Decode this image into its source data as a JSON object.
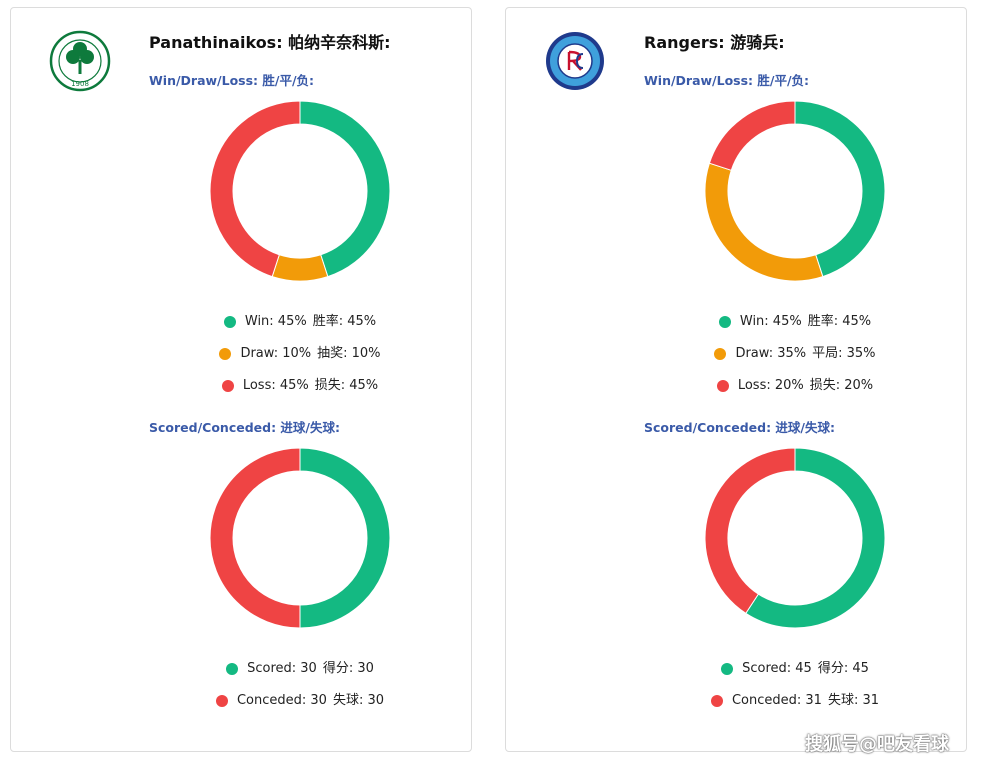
{
  "colors": {
    "win": "#14b982",
    "draw": "#f29b09",
    "loss": "#ef4444",
    "scored": "#14b982",
    "conceded": "#ef4444",
    "section": "#3a5aa8"
  },
  "teams": [
    {
      "title": "Panathinaikos: 帕纳辛奈科斯:",
      "logo_icon": "panathinaikos-clover-crest",
      "logo_year": "1908",
      "wdl_title": "Win/Draw/Loss: 胜/平/负:",
      "goals_title": "Scored/Conceded: 进球/失球:",
      "legend_wdl": [
        {
          "label": "Win: 45%",
          "label_cn": "胜率: 45%"
        },
        {
          "label": "Draw: 10%",
          "label_cn": "抽奖: 10%"
        },
        {
          "label": "Loss: 45%",
          "label_cn": "损失: 45%"
        }
      ],
      "legend_goals": [
        {
          "label": "Scored: 30",
          "label_cn": "得分: 30"
        },
        {
          "label": "Conceded: 30",
          "label_cn": "失球: 30"
        }
      ]
    },
    {
      "title": "Rangers: 游骑兵:",
      "logo_icon": "rangers-crest",
      "wdl_title": "Win/Draw/Loss: 胜/平/负:",
      "goals_title": "Scored/Conceded: 进球/失球:",
      "legend_wdl": [
        {
          "label": "Win: 45%",
          "label_cn": "胜率: 45%"
        },
        {
          "label": "Draw: 35%",
          "label_cn": "平局: 35%"
        },
        {
          "label": "Loss: 20%",
          "label_cn": "损失: 20%"
        }
      ],
      "legend_goals": [
        {
          "label": "Scored: 45",
          "label_cn": "得分: 45"
        },
        {
          "label": "Conceded: 31",
          "label_cn": "失球: 31"
        }
      ]
    }
  ],
  "chart_data": [
    {
      "type": "pie",
      "categories": [
        "Win",
        "Draw",
        "Loss"
      ],
      "values": [
        45,
        10,
        45
      ]
    },
    {
      "type": "pie",
      "categories": [
        "Scored",
        "Conceded"
      ],
      "values": [
        30,
        30
      ]
    },
    {
      "type": "pie",
      "categories": [
        "Win",
        "Draw",
        "Loss"
      ],
      "values": [
        45,
        35,
        20
      ]
    },
    {
      "type": "pie",
      "categories": [
        "Scored",
        "Conceded"
      ],
      "values": [
        45,
        31
      ]
    }
  ],
  "watermark": "搜狐号@吧友看球"
}
